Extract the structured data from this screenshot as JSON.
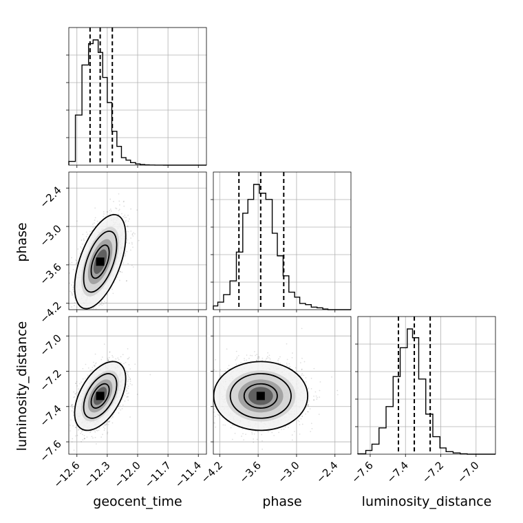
{
  "chart_data": {
    "type": "corner",
    "parameters": [
      "geocent_time",
      "phase",
      "luminosity_distance"
    ],
    "ticks": {
      "geocent_time": [
        "−12.6",
        "−12.3",
        "−12.0",
        "−11.7",
        "−11.4"
      ],
      "phase": [
        "−4.2",
        "−3.6",
        "−3.0",
        "−2.4"
      ],
      "luminosity_distance": [
        "−7.6",
        "−7.4",
        "−7.2",
        "−7.0"
      ]
    },
    "tick_values": {
      "geocent_time": [
        -12.6,
        -12.3,
        -12.0,
        -11.7,
        -11.4
      ],
      "phase": [
        -4.2,
        -3.6,
        -3.0,
        -2.4
      ],
      "luminosity_distance": [
        -7.6,
        -7.4,
        -7.2,
        -7.0
      ]
    },
    "ranges": {
      "geocent_time": [
        -12.68,
        -11.32
      ],
      "phase": [
        -4.3,
        -2.15
      ],
      "luminosity_distance": [
        -7.67,
        -6.89
      ]
    },
    "marginals": [
      {
        "parameter": "geocent_time",
        "bin_edges": [
          -12.68,
          -12.615,
          -12.55,
          -12.485,
          -12.44,
          -12.39,
          -12.345,
          -12.3,
          -12.255,
          -12.205,
          -12.16,
          -12.115,
          -12.07,
          -12.02,
          -11.975,
          -11.93,
          -11.885,
          -11.83,
          -11.79,
          -11.745,
          -11.32
        ],
        "counts": [
          0.03,
          0.4,
          0.8,
          0.97,
          1.0,
          0.9,
          0.7,
          0.5,
          0.27,
          0.15,
          0.06,
          0.04,
          0.02,
          0.01,
          0.005,
          0.002,
          0.001,
          0.0005,
          0.0003,
          0.0
        ],
        "quantiles": [
          -12.47,
          -12.37,
          -12.25
        ]
      },
      {
        "parameter": "phase",
        "bin_edges": [
          -4.3,
          -4.23,
          -4.14,
          -4.04,
          -3.94,
          -3.84,
          -3.76,
          -3.67,
          -3.58,
          -3.48,
          -3.38,
          -3.3,
          -3.21,
          -3.12,
          -3.03,
          -2.95,
          -2.86,
          -2.77,
          -2.68,
          -2.59,
          -2.51,
          -2.15
        ],
        "counts": [
          0.03,
          0.06,
          0.12,
          0.23,
          0.46,
          0.77,
          0.88,
          1.0,
          0.93,
          0.88,
          0.61,
          0.43,
          0.27,
          0.14,
          0.1,
          0.05,
          0.04,
          0.02,
          0.015,
          0.005,
          0.0
        ],
        "quantiles": [
          -3.9,
          -3.56,
          -3.2
        ]
      },
      {
        "parameter": "luminosity_distance",
        "bin_edges": [
          -7.67,
          -7.625,
          -7.59,
          -7.55,
          -7.51,
          -7.47,
          -7.43,
          -7.39,
          -7.36,
          -7.325,
          -7.285,
          -7.245,
          -7.205,
          -7.17,
          -7.13,
          -7.09,
          -7.05,
          -6.89
        ],
        "counts": [
          0.003,
          0.03,
          0.08,
          0.21,
          0.38,
          0.62,
          0.85,
          1.0,
          0.93,
          0.6,
          0.32,
          0.14,
          0.05,
          0.02,
          0.01,
          0.003,
          0.0
        ],
        "quantiles": [
          -7.44,
          -7.35,
          -7.26
        ]
      }
    ],
    "joint": [
      {
        "x": "geocent_time",
        "y": "phase",
        "mean": [
          -12.37,
          -3.55
        ],
        "std": [
          0.11,
          0.32
        ],
        "corr": 0.55,
        "levels": [
          0.6,
          1.1,
          1.7
        ]
      },
      {
        "x": "geocent_time",
        "y": "luminosity_distance",
        "mean": [
          -12.37,
          -7.34
        ],
        "std": [
          0.11,
          0.085
        ],
        "corr": 0.5,
        "levels": [
          0.6,
          1.1,
          1.7
        ]
      },
      {
        "x": "phase",
        "y": "luminosity_distance",
        "mean": [
          -3.56,
          -7.34
        ],
        "std": [
          0.32,
          0.085
        ],
        "corr": 0.0,
        "levels": [
          0.6,
          1.1,
          1.7
        ]
      }
    ],
    "grid": true
  }
}
